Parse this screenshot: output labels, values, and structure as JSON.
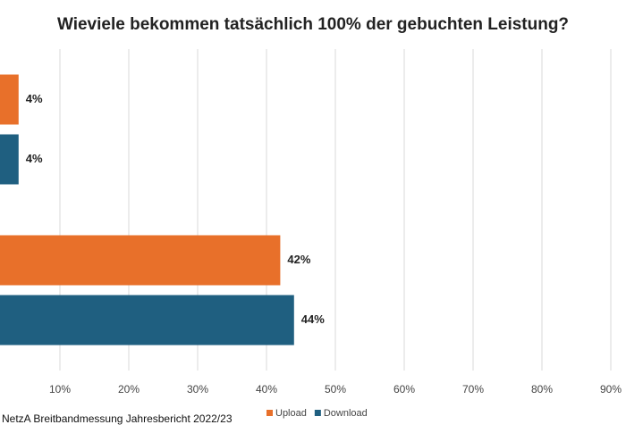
{
  "chart_data": {
    "type": "hbar",
    "title": "Wieviele bekommen tatsächlich 100% der gebuchten Leistung?",
    "source": "NetzA Breitbandmessung Jahresbericht 2022/23",
    "categories": [
      null,
      null
    ],
    "series": [
      {
        "name": "Upload",
        "color": "#e8702a",
        "values": [
          4,
          42
        ],
        "value_labels": [
          "4%",
          "42%"
        ]
      },
      {
        "name": "Download",
        "color": "#1f5f80",
        "values": [
          4,
          44
        ],
        "value_labels": [
          "4%",
          "44%"
        ]
      }
    ],
    "xlim": [
      1.3,
      91.3
    ],
    "xticks": [
      {
        "value": 10,
        "label": "10%"
      },
      {
        "value": 20,
        "label": "20%"
      },
      {
        "value": 30,
        "label": "30%"
      },
      {
        "value": 40,
        "label": "40%"
      },
      {
        "value": 50,
        "label": "50%"
      },
      {
        "value": 60,
        "label": "60%"
      },
      {
        "value": 70,
        "label": "70%"
      },
      {
        "value": 80,
        "label": "80%"
      },
      {
        "value": 90,
        "label": "90%"
      }
    ],
    "grid": true,
    "legend": "bottom"
  }
}
